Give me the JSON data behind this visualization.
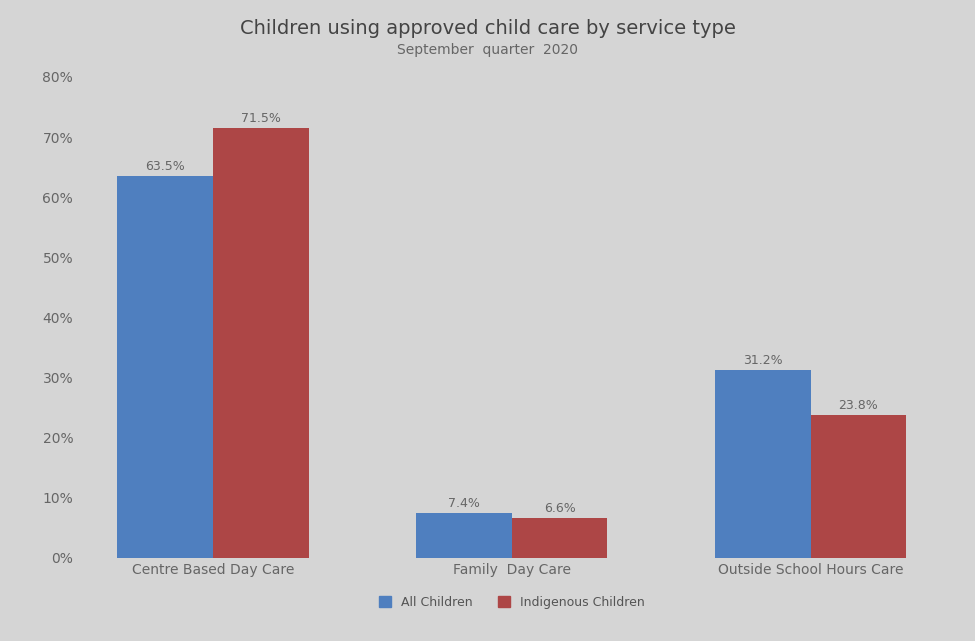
{
  "title": "Children using approved child care by service type",
  "subtitle": "September  quarter  2020",
  "categories": [
    "Centre Based Day Care",
    "Family  Day Care",
    "Outside School Hours Care"
  ],
  "all_children": [
    63.5,
    7.4,
    31.2
  ],
  "indigenous_children": [
    71.5,
    6.6,
    23.8
  ],
  "all_children_color": "#4f7fbf",
  "indigenous_children_color": "#ad4646",
  "background_color": "#d5d5d5",
  "ylim": [
    0,
    80
  ],
  "yticks": [
    0,
    10,
    20,
    30,
    40,
    50,
    60,
    70,
    80
  ],
  "ytick_labels": [
    "0%",
    "10%",
    "20%",
    "30%",
    "40%",
    "50%",
    "60%",
    "70%",
    "80%"
  ],
  "bar_width": 0.32,
  "legend_labels": [
    "All Children",
    "Indigenous Children"
  ],
  "title_fontsize": 14,
  "subtitle_fontsize": 10,
  "label_fontsize": 9,
  "tick_fontsize": 10,
  "legend_fontsize": 9
}
